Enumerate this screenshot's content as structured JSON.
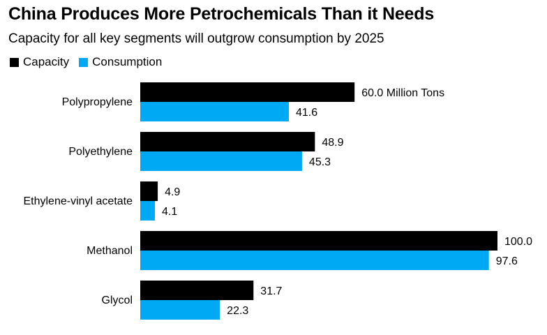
{
  "header": {
    "title": "China Produces More Petrochemicals Than it Needs",
    "subtitle": "Capacity for all key segments will outgrow consumption by 2025"
  },
  "legend": {
    "items": [
      {
        "label": "Capacity",
        "color": "#000000"
      },
      {
        "label": "Consumption",
        "color": "#00a9f4"
      }
    ]
  },
  "chart_data": {
    "type": "bar",
    "orientation": "horizontal",
    "title": "China Produces More Petrochemicals Than it Needs",
    "subtitle": "Capacity for all key segments will outgrow consumption by 2025",
    "categories": [
      "Polypropylene",
      "Polyethylene",
      "Ethylene-vinyl acetate",
      "Methanol",
      "Glycol"
    ],
    "series": [
      {
        "name": "Capacity",
        "color": "#000000",
        "values": [
          60.0,
          48.9,
          4.9,
          100.0,
          31.7
        ],
        "labels": [
          "60.0 Million Tons",
          "48.9",
          "4.9",
          "100.0",
          "31.7"
        ]
      },
      {
        "name": "Consumption",
        "color": "#00a9f4",
        "values": [
          41.6,
          45.3,
          4.1,
          97.6,
          22.3
        ],
        "labels": [
          "41.6",
          "45.3",
          "4.1",
          "97.6",
          "22.3"
        ]
      }
    ],
    "xlim": [
      0,
      100
    ],
    "xlabel": "",
    "ylabel": "",
    "legend": "top-left",
    "grid": false
  }
}
